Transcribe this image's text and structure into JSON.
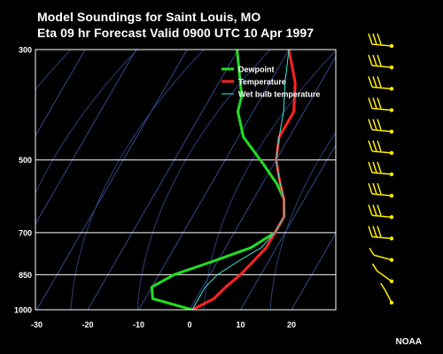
{
  "chart_data": {
    "type": "line",
    "title": "Model Soundings for Saint Louis, MO",
    "subtitle": "Eta 09 hr Forecast Valid 0900 UTC  10 Apr 1997",
    "x_ticks": [
      -30,
      -20,
      -10,
      0,
      10,
      20
    ],
    "y_ticks": [
      300,
      500,
      700,
      850,
      1000
    ],
    "xlim": [
      -30,
      29
    ],
    "ylim": [
      1000,
      300
    ],
    "y_scale": "log",
    "grid": true,
    "legend_position": "top-right",
    "series": [
      {
        "name": "Dewpoint",
        "color": "#22dd22",
        "points": [
          [
            -20.2,
            300
          ],
          [
            -14,
            372
          ],
          [
            -13,
            400
          ],
          [
            -9,
            450
          ],
          [
            -2,
            510
          ],
          [
            3,
            560
          ],
          [
            6,
            600
          ],
          [
            8,
            650
          ],
          [
            8,
            700
          ],
          [
            5,
            750
          ],
          [
            -1,
            800
          ],
          [
            -7,
            850
          ],
          [
            -10,
            900
          ],
          [
            -8.5,
            950
          ],
          [
            0.5,
            1000
          ]
        ]
      },
      {
        "name": "Temperature",
        "color": "#ff2222",
        "points": [
          [
            -10,
            300
          ],
          [
            -5,
            350
          ],
          [
            -2,
            400
          ],
          [
            -2,
            450
          ],
          [
            0,
            500
          ],
          [
            3,
            550
          ],
          [
            6,
            600
          ],
          [
            8,
            650
          ],
          [
            8,
            700
          ],
          [
            8,
            750
          ],
          [
            7,
            800
          ],
          [
            6,
            850
          ],
          [
            4.5,
            900
          ],
          [
            3.5,
            950
          ],
          [
            0.5,
            1000
          ]
        ]
      },
      {
        "name": "Wet bulb temperature",
        "color": "#33eedd",
        "points": [
          [
            -10,
            300
          ],
          [
            -7,
            350
          ],
          [
            -4,
            400
          ],
          [
            -2,
            450
          ],
          [
            0,
            500
          ],
          [
            3,
            550
          ],
          [
            6,
            600
          ],
          [
            8,
            650
          ],
          [
            8,
            700
          ],
          [
            7,
            750
          ],
          [
            4,
            800
          ],
          [
            1.5,
            850
          ],
          [
            0.5,
            900
          ],
          [
            0.5,
            950
          ],
          [
            0.5,
            1000
          ]
        ]
      }
    ]
  },
  "wind_barbs": {
    "color": "#ffee00",
    "count": 13
  },
  "credit": "NOAA"
}
